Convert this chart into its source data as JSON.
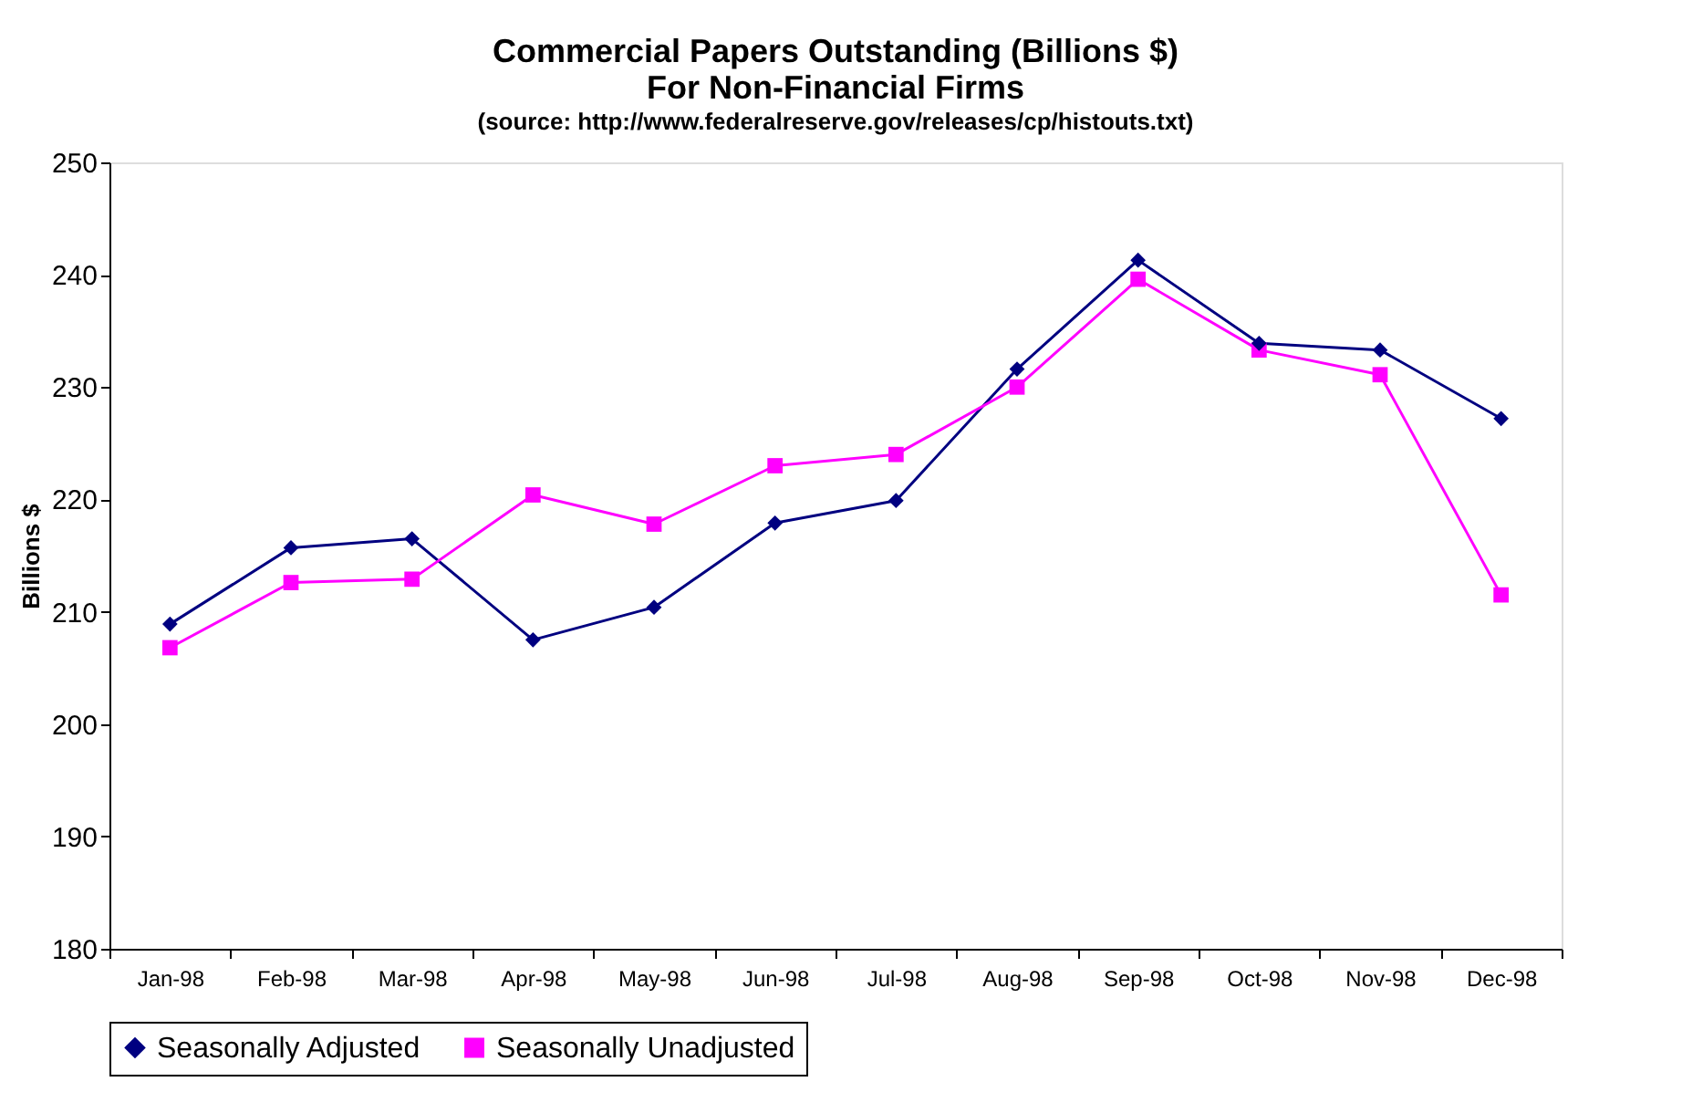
{
  "chart_data": {
    "type": "line",
    "title": "Commercial Papers Outstanding (Billions $)\nFor Non-Financial Firms",
    "subtitle": "(source: http://www.federalreserve.gov/releases/cp/histouts.txt)",
    "ylabel": "Billions $",
    "categories": [
      "Jan-98",
      "Feb-98",
      "Mar-98",
      "Apr-98",
      "May-98",
      "Jun-98",
      "Jul-98",
      "Aug-98",
      "Sep-98",
      "Oct-98",
      "Nov-98",
      "Dec-98"
    ],
    "series": [
      {
        "name": "Seasonally Adjusted",
        "color": "#000080",
        "marker": "diamond",
        "values": [
          208.9,
          215.7,
          216.5,
          207.5,
          210.4,
          217.9,
          219.9,
          231.6,
          241.3,
          233.9,
          233.3,
          227.2
        ]
      },
      {
        "name": "Seasonally Unadjusted",
        "color": "#ff00ff",
        "marker": "square",
        "values": [
          206.8,
          212.6,
          212.9,
          220.4,
          217.8,
          223.0,
          224.0,
          230.0,
          239.6,
          233.3,
          231.1,
          211.5
        ]
      }
    ],
    "ylim": [
      180,
      250
    ],
    "yticks": [
      180,
      190,
      200,
      210,
      220,
      230,
      240,
      250
    ],
    "grid": false,
    "legend": "bottom",
    "line_style": "solid"
  }
}
